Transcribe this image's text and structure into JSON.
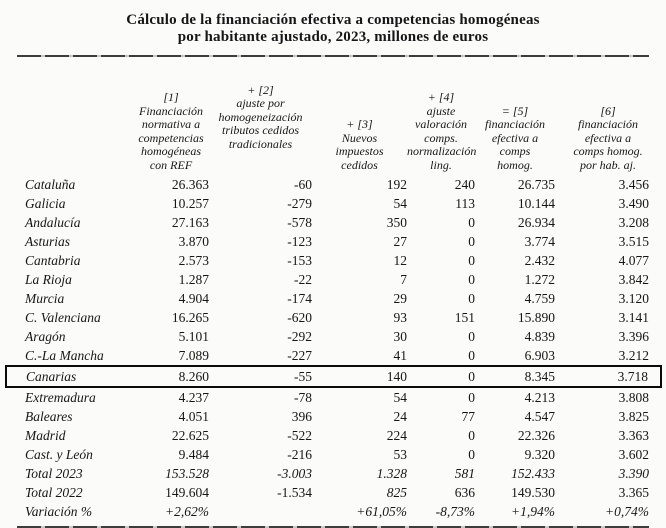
{
  "title": {
    "line1": "Cálculo de la financiación efectiva a competencias homogéneas",
    "line2": "por habitante ajustado, 2023, millones de euros"
  },
  "table": {
    "region_column_header": "",
    "columns": [
      {
        "id": "col-1",
        "header": "[1]\nFinanciación\nnormativa a\ncompetencias\nhomogéneas\ncon REF"
      },
      {
        "id": "col-2",
        "header": "+ [2]\najuste por\nhomogeneización\ntributos cedidos\ntradicionales"
      },
      {
        "id": "col-3",
        "header": "+ [3]\nNuevos\nimpuestos\ncedidos"
      },
      {
        "id": "col-4",
        "header": "+ [4]\najuste\nvaloración\ncomps.\nnormalización\nling."
      },
      {
        "id": "col-5",
        "header": "= [5]\nfinanciación\nefectiva a\ncomps\nhomog."
      },
      {
        "id": "col-6",
        "header": "[6]\nfinanciación\nefectiva a\ncomps homog.\npor hab. aj."
      }
    ],
    "rows": [
      {
        "label": "Cataluña",
        "values": [
          "26.363",
          "-60",
          "192",
          "240",
          "26.735",
          "3.456"
        ]
      },
      {
        "label": "Galicia",
        "values": [
          "10.257",
          "-279",
          "54",
          "113",
          "10.144",
          "3.490"
        ]
      },
      {
        "label": "Andalucía",
        "values": [
          "27.163",
          "-578",
          "350",
          "0",
          "26.934",
          "3.208"
        ]
      },
      {
        "label": "Asturias",
        "values": [
          "3.870",
          "-123",
          "27",
          "0",
          "3.774",
          "3.515"
        ]
      },
      {
        "label": "Cantabria",
        "values": [
          "2.573",
          "-153",
          "12",
          "0",
          "2.432",
          "4.077"
        ]
      },
      {
        "label": "La Rioja",
        "values": [
          "1.287",
          "-22",
          "7",
          "0",
          "1.272",
          "3.842"
        ]
      },
      {
        "label": "Murcia",
        "values": [
          "4.904",
          "-174",
          "29",
          "0",
          "4.759",
          "3.120"
        ]
      },
      {
        "label": "C. Valenciana",
        "values": [
          "16.265",
          "-620",
          "93",
          "151",
          "15.890",
          "3.141"
        ]
      },
      {
        "label": "Aragón",
        "values": [
          "5.101",
          "-292",
          "30",
          "0",
          "4.839",
          "3.396"
        ]
      },
      {
        "label": "C.-La Mancha",
        "values": [
          "7.089",
          "-227",
          "41",
          "0",
          "6.903",
          "3.212"
        ]
      },
      {
        "label": "Canarias",
        "values": [
          "8.260",
          "-55",
          "140",
          "0",
          "8.345",
          "3.718"
        ],
        "highlighted": true
      },
      {
        "label": "Extremadura",
        "values": [
          "4.237",
          "-78",
          "54",
          "0",
          "4.213",
          "3.808"
        ]
      },
      {
        "label": "Baleares",
        "values": [
          "4.051",
          "396",
          "24",
          "77",
          "4.547",
          "3.825"
        ]
      },
      {
        "label": "Madrid",
        "values": [
          "22.625",
          "-522",
          "224",
          "0",
          "22.326",
          "3.363"
        ]
      },
      {
        "label": "Cast. y León",
        "values": [
          "9.484",
          "-216",
          "53",
          "0",
          "9.320",
          "3.602"
        ]
      },
      {
        "label": "Total 2023",
        "values": [
          "153.528",
          "-3.003",
          "1.328",
          "581",
          "152.433",
          "3.390"
        ],
        "italic": true
      },
      {
        "label": "Total 2022",
        "values": [
          "149.604",
          "-1.534",
          "825",
          "636",
          "149.530",
          "3.365"
        ],
        "italic_cells": [
          2
        ]
      },
      {
        "label": "Variación %",
        "values": [
          "+2,62%",
          "",
          "+61,05%",
          "-8,73%",
          "+1,94%",
          "+0,74%"
        ],
        "italic": true
      }
    ],
    "highlight_border_color": "#0a0a0a"
  }
}
